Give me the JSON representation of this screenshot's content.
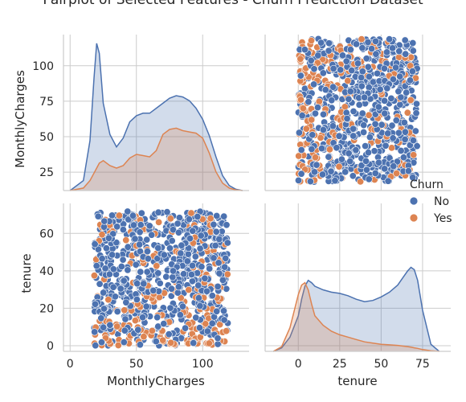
{
  "chart_data": {
    "type": "pairplot",
    "title": "Pairplot of Selected Features - Churn Prediction Dataset",
    "variables": [
      "MonthlyCharges",
      "tenure"
    ],
    "hue": "Churn",
    "legend": {
      "title": "Churn",
      "placement": "right",
      "entries": [
        "No",
        "Yes"
      ]
    },
    "colors": {
      "No": "#4c72b0",
      "Yes": "#dd8452"
    },
    "grid": true,
    "axes": {
      "MonthlyCharges": {
        "range": [
          -5,
          135
        ],
        "ticks": [
          0,
          50,
          100
        ],
        "ticks_as_y": [
          25,
          50,
          75,
          100
        ]
      },
      "tenure": {
        "range": [
          -20,
          92
        ],
        "range_as_y": [
          -3,
          76
        ],
        "ticks": [
          0,
          25,
          50,
          75
        ],
        "ticks_as_y": [
          0,
          20,
          40,
          60
        ]
      }
    },
    "kde": {
      "MonthlyCharges": {
        "x": [
          0,
          10,
          15,
          18,
          20,
          22,
          25,
          30,
          35,
          40,
          45,
          50,
          55,
          60,
          65,
          70,
          75,
          80,
          85,
          90,
          95,
          100,
          105,
          110,
          115,
          120,
          125,
          130
        ],
        "No": [
          0,
          8,
          40,
          90,
          118,
          110,
          70,
          45,
          35,
          42,
          55,
          60,
          62,
          62,
          66,
          70,
          74,
          76,
          75,
          72,
          66,
          57,
          44,
          27,
          12,
          4,
          1,
          0
        ],
        "Yes": [
          0,
          2,
          8,
          14,
          18,
          22,
          24,
          20,
          18,
          20,
          26,
          29,
          28,
          27,
          32,
          45,
          49,
          50,
          48,
          47,
          46,
          42,
          30,
          15,
          6,
          2,
          0.5,
          0
        ]
      },
      "tenure": {
        "x": [
          -15,
          -10,
          -5,
          0,
          2,
          4,
          6,
          8,
          10,
          15,
          20,
          25,
          30,
          35,
          40,
          45,
          50,
          55,
          60,
          63,
          66,
          68,
          70,
          72,
          75,
          80,
          85
        ],
        "No": [
          0,
          3,
          12,
          30,
          44,
          55,
          60,
          58,
          55,
          52,
          50,
          49,
          47,
          44,
          42,
          43,
          46,
          50,
          56,
          62,
          68,
          71,
          69,
          60,
          35,
          6,
          0
        ],
        "Yes": [
          0,
          4,
          20,
          48,
          56,
          58,
          52,
          40,
          30,
          22,
          17,
          14,
          12,
          10,
          8,
          7,
          6,
          5.5,
          5,
          4.5,
          4,
          3.5,
          3,
          2.5,
          1.5,
          0.5,
          0
        ]
      }
    },
    "scatter_extent": {
      "MonthlyCharges": [
        18,
        119
      ],
      "tenure": [
        0,
        72
      ]
    }
  }
}
